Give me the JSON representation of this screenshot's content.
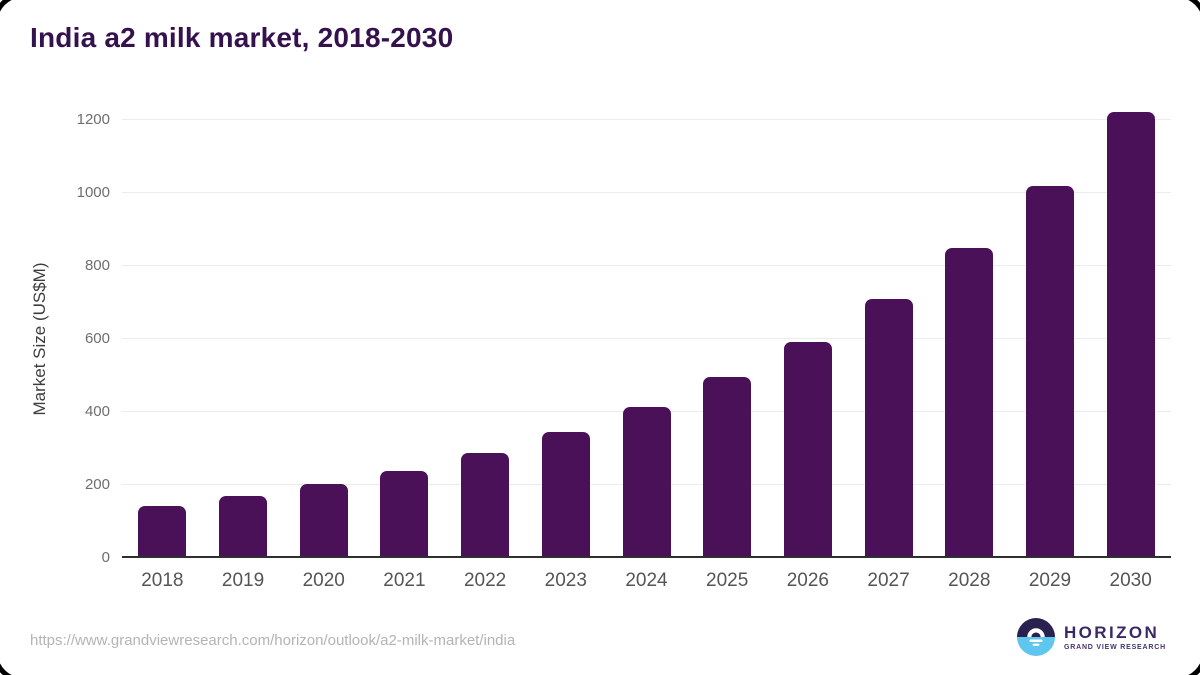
{
  "title": "India a2 milk market, 2018-2030",
  "source_url": "https://www.grandviewresearch.com/horizon/outlook/a2-milk-market/india",
  "logo": {
    "name": "HORIZON",
    "subtitle": "GRAND VIEW RESEARCH"
  },
  "colors": {
    "bar": "#4a1158",
    "title": "#35124d",
    "grid": "#ececec",
    "axis": "#2f2f2f",
    "tick": "#6e6e6e",
    "xlabel": "#555555",
    "ylabel": "#3d3d3d",
    "url": "#b4b4b4",
    "frame": "#000000",
    "logo_dark": "#2b2150",
    "logo_blue": "#5ec6ef",
    "logo_text": "#3a2964",
    "logo_sub": "#443371"
  },
  "chart_data": {
    "type": "bar",
    "title": "India a2 milk market, 2018-2030",
    "categories": [
      "2018",
      "2019",
      "2020",
      "2021",
      "2022",
      "2023",
      "2024",
      "2025",
      "2026",
      "2027",
      "2028",
      "2029",
      "2030"
    ],
    "values": [
      143,
      171,
      203,
      239,
      288,
      344,
      413,
      496,
      591,
      709,
      848,
      1018,
      1221
    ],
    "xlabel": "",
    "ylabel": "Market Size (US$M)",
    "ylim": [
      0,
      1200
    ],
    "yticks": [
      0,
      200,
      400,
      600,
      800,
      1000,
      1200
    ],
    "grid": true,
    "legend": false,
    "bar_color": "#4a1158"
  }
}
